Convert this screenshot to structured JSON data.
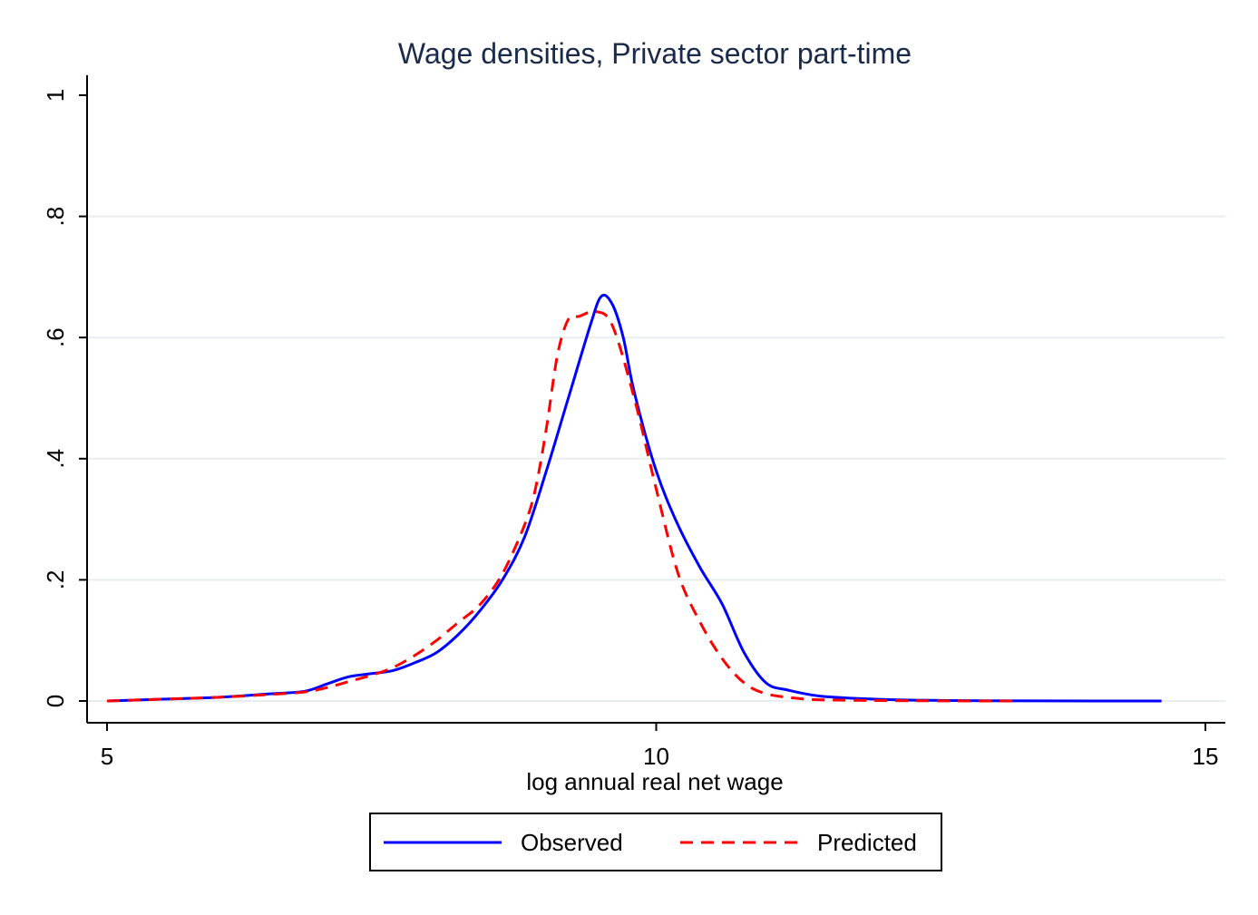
{
  "chart_data": {
    "type": "line",
    "title": "Wage densities, Private sector part-time",
    "xlabel": "log annual real net wage",
    "ylabel": "",
    "xlim": [
      5,
      15
    ],
    "ylim": [
      0,
      1
    ],
    "x_ticks": [
      5,
      10,
      15
    ],
    "x_tick_labels": [
      "5",
      "10",
      "15"
    ],
    "y_ticks": [
      0,
      0.2,
      0.4,
      0.6,
      0.8,
      1
    ],
    "y_tick_labels": [
      "0",
      ".2",
      ".4",
      ".6",
      ".8",
      "1"
    ],
    "grid": true,
    "legend_position": "bottom",
    "series": [
      {
        "name": "Observed",
        "color": "#0000ff",
        "style": "solid",
        "x": [
          5.0,
          5.5,
          6.0,
          6.5,
          6.8,
          7.0,
          7.2,
          7.4,
          7.6,
          7.8,
          8.0,
          8.2,
          8.4,
          8.6,
          8.8,
          9.0,
          9.2,
          9.4,
          9.5,
          9.6,
          9.7,
          9.8,
          10.0,
          10.2,
          10.4,
          10.6,
          10.8,
          11.0,
          11.2,
          11.5,
          12.0,
          12.5,
          13.0,
          14.0,
          14.6
        ],
        "y": [
          0.0,
          0.003,
          0.006,
          0.012,
          0.016,
          0.028,
          0.04,
          0.045,
          0.05,
          0.063,
          0.08,
          0.11,
          0.15,
          0.2,
          0.27,
          0.38,
          0.5,
          0.62,
          0.668,
          0.655,
          0.6,
          0.51,
          0.38,
          0.29,
          0.22,
          0.16,
          0.08,
          0.03,
          0.018,
          0.008,
          0.003,
          0.001,
          0.0005,
          0.0,
          0.0
        ]
      },
      {
        "name": "Predicted",
        "color": "#ff0000",
        "style": "dashed",
        "x": [
          5.0,
          5.5,
          6.0,
          6.5,
          6.8,
          7.0,
          7.2,
          7.4,
          7.6,
          7.8,
          8.0,
          8.2,
          8.4,
          8.6,
          8.8,
          8.9,
          9.0,
          9.1,
          9.2,
          9.3,
          9.45,
          9.6,
          9.8,
          10.0,
          10.2,
          10.4,
          10.6,
          10.8,
          11.0,
          11.3,
          11.5,
          12.0,
          12.5,
          13.0,
          13.3
        ],
        "y": [
          0.0,
          0.003,
          0.006,
          0.011,
          0.015,
          0.022,
          0.032,
          0.042,
          0.055,
          0.075,
          0.1,
          0.13,
          0.16,
          0.21,
          0.29,
          0.35,
          0.45,
          0.57,
          0.63,
          0.635,
          0.643,
          0.62,
          0.5,
          0.35,
          0.21,
          0.13,
          0.07,
          0.03,
          0.012,
          0.004,
          0.002,
          0.0008,
          0.0003,
          0.0,
          0.0
        ]
      }
    ]
  }
}
